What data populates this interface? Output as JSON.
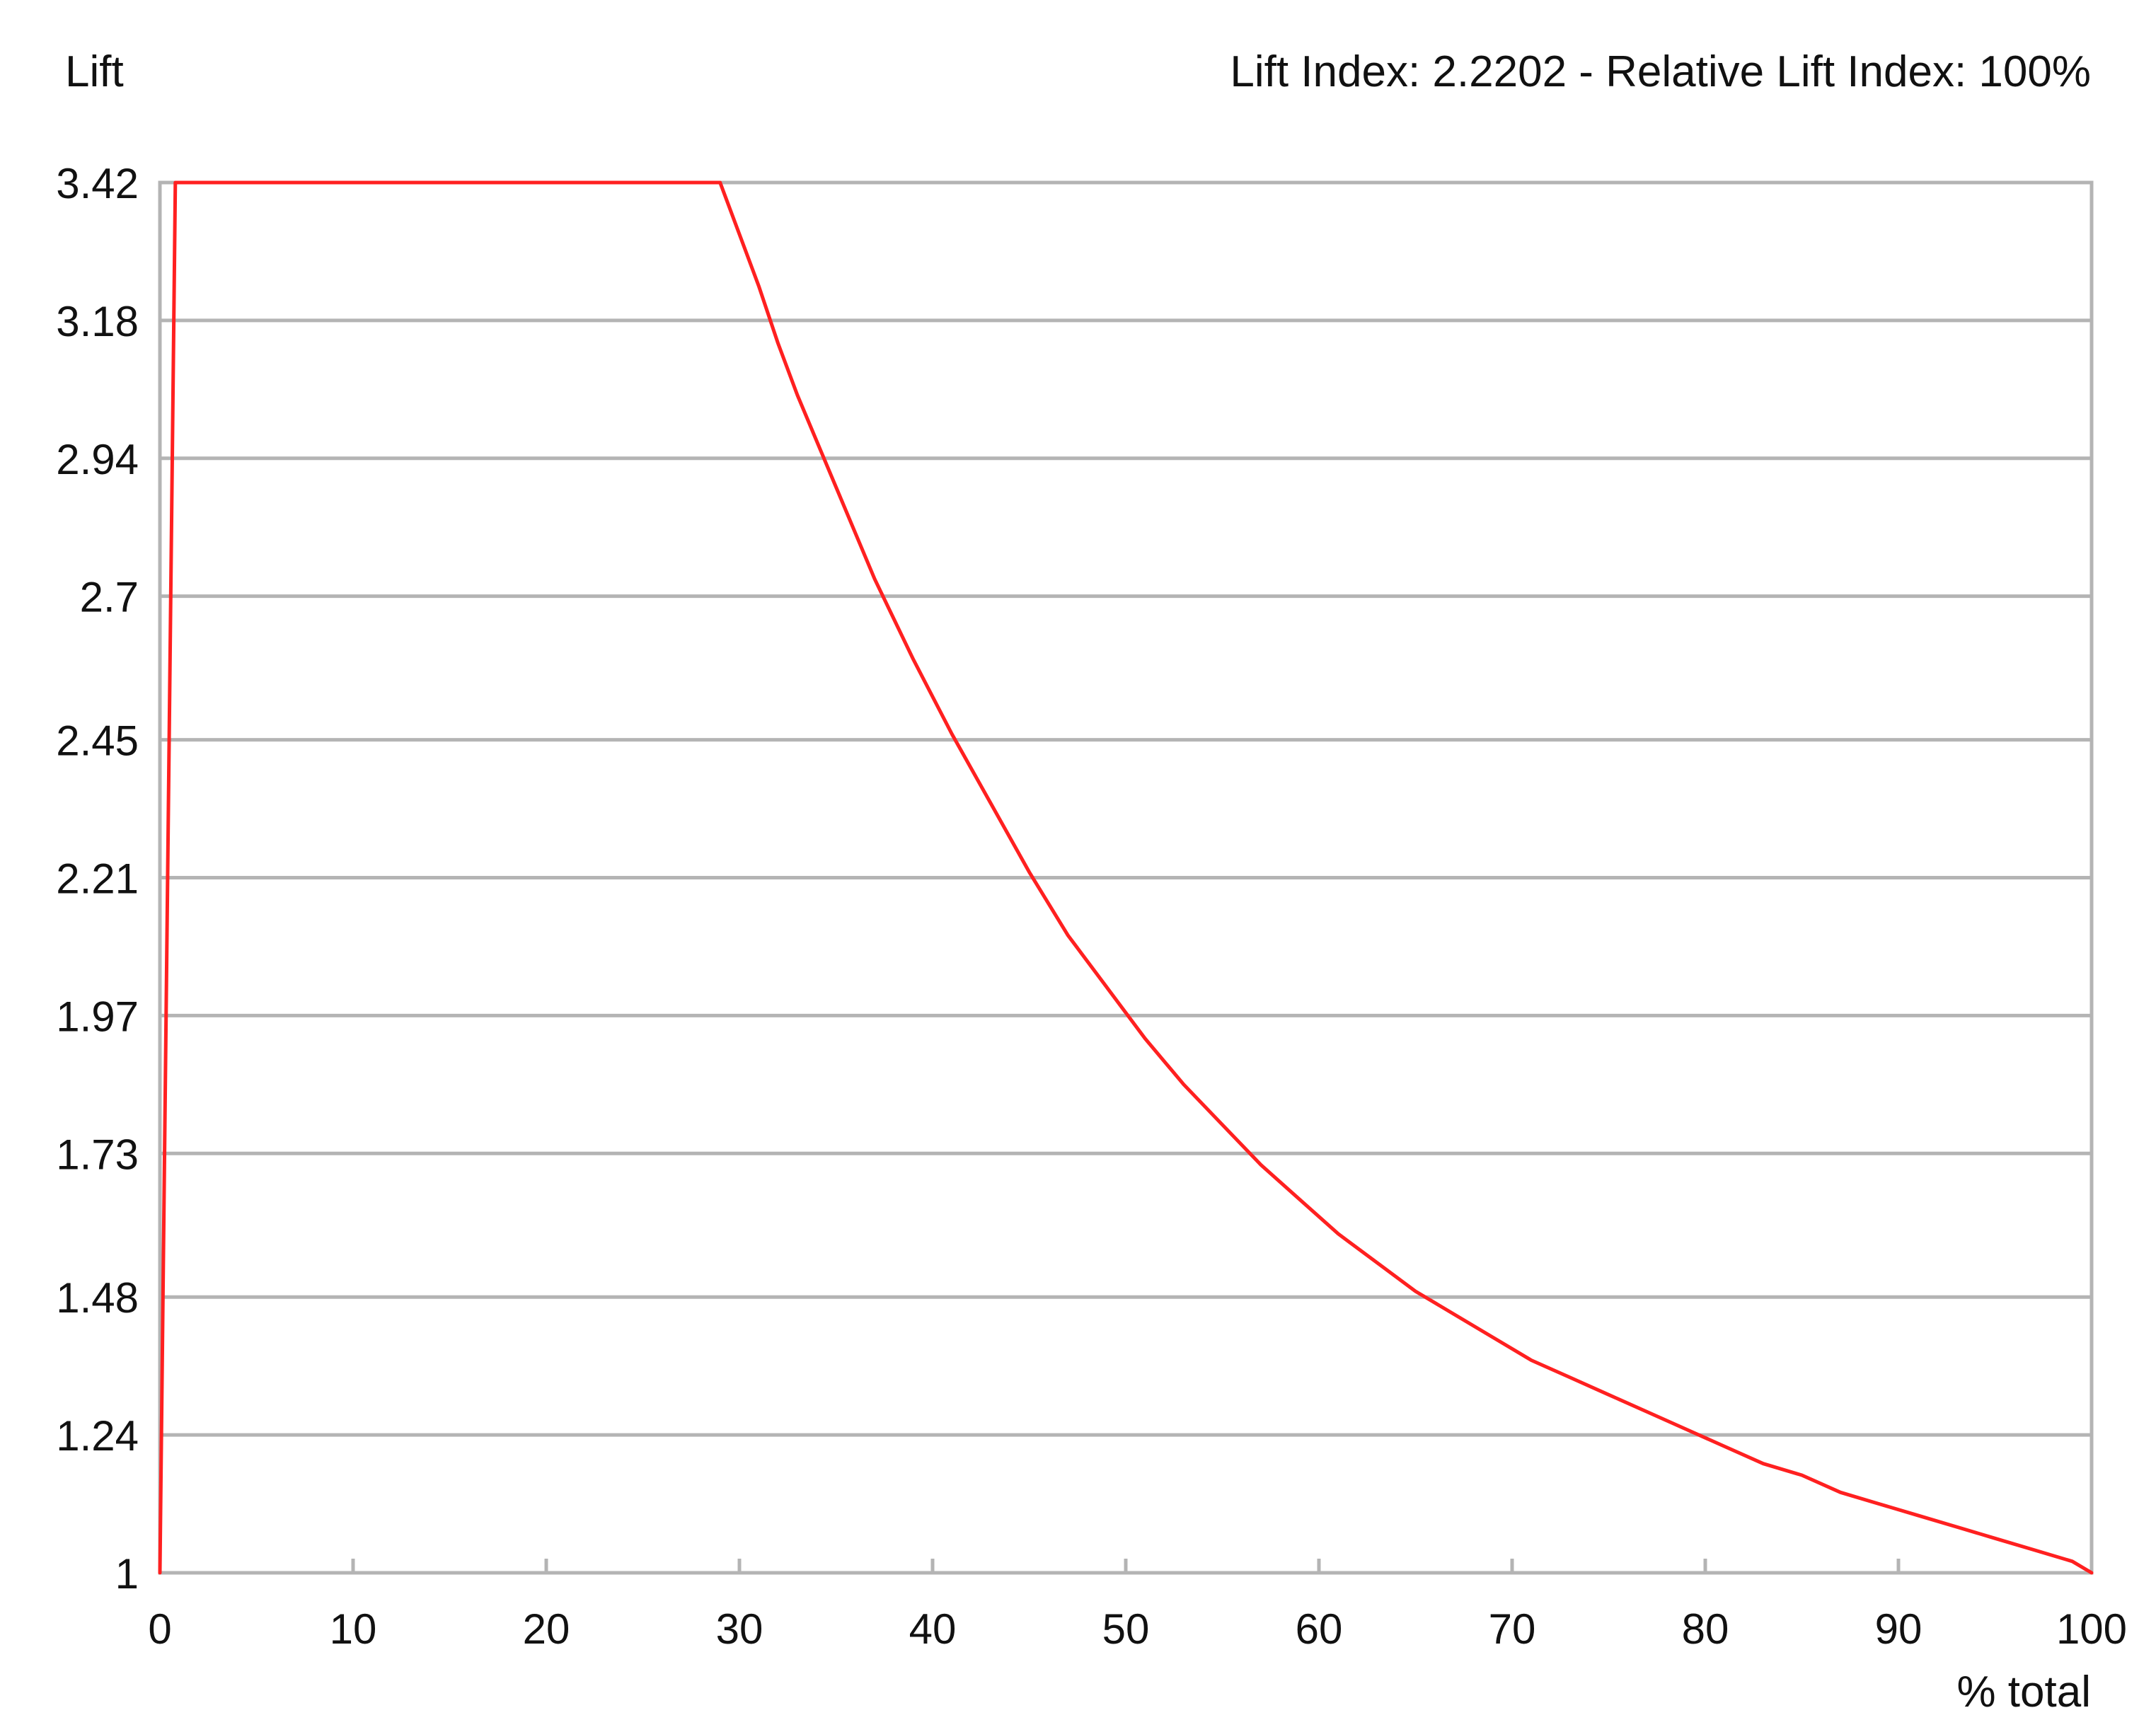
{
  "chart_data": {
    "type": "line",
    "ylabel": "Lift",
    "xlabel": "% total",
    "title": "Lift Index: 2.2202 - Relative Lift Index: 100%",
    "xlim": [
      0,
      100
    ],
    "ylim": [
      1,
      3.42
    ],
    "x_ticks": [
      "0",
      "10",
      "20",
      "30",
      "40",
      "50",
      "60",
      "70",
      "80",
      "90",
      "100"
    ],
    "y_ticks": [
      "1",
      "1.24",
      "1.48",
      "1.73",
      "1.97",
      "2.21",
      "2.45",
      "2.7",
      "2.94",
      "3.18",
      "3.42"
    ],
    "grid": "horizontal",
    "line_color": "#ff2020",
    "grid_color": "#b4b4b4",
    "series": [
      {
        "x": [
          0,
          0.8,
          5,
          10,
          15,
          20,
          25,
          29,
          30,
          31,
          32,
          33,
          35,
          37,
          39,
          41,
          43,
          45,
          47,
          49,
          51,
          53,
          55,
          57,
          59,
          61,
          63,
          65,
          67,
          69,
          71,
          73,
          75,
          77,
          79,
          81,
          83,
          85,
          87,
          89,
          91,
          93,
          95,
          97,
          99,
          100
        ],
        "y": [
          1,
          3.42,
          3.42,
          3.42,
          3.42,
          3.42,
          3.42,
          3.42,
          3.33,
          3.24,
          3.14,
          3.05,
          2.89,
          2.73,
          2.59,
          2.46,
          2.34,
          2.22,
          2.11,
          2.02,
          1.93,
          1.85,
          1.78,
          1.71,
          1.65,
          1.59,
          1.54,
          1.49,
          1.45,
          1.41,
          1.37,
          1.34,
          1.31,
          1.28,
          1.25,
          1.22,
          1.19,
          1.17,
          1.14,
          1.12,
          1.1,
          1.08,
          1.06,
          1.04,
          1.02,
          1.0
        ]
      }
    ]
  }
}
